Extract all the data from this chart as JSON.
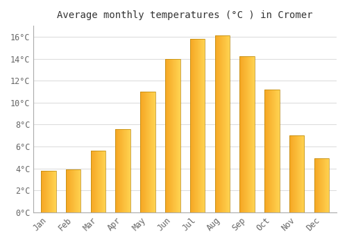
{
  "title": "Average monthly temperatures (°C ) in Cromer",
  "months": [
    "Jan",
    "Feb",
    "Mar",
    "Apr",
    "May",
    "Jun",
    "Jul",
    "Aug",
    "Sep",
    "Oct",
    "Nov",
    "Dec"
  ],
  "temperatures": [
    3.8,
    3.9,
    5.6,
    7.6,
    11.0,
    14.0,
    15.8,
    16.1,
    14.2,
    11.2,
    7.0,
    4.9
  ],
  "bar_color_left": "#F5A623",
  "bar_color_right": "#FFD966",
  "ylim": [
    0,
    17
  ],
  "yticks": [
    0,
    2,
    4,
    6,
    8,
    10,
    12,
    14,
    16
  ],
  "ytick_labels": [
    "0°C",
    "2°C",
    "4°C",
    "6°C",
    "8°C",
    "10°C",
    "12°C",
    "14°C",
    "16°C"
  ],
  "background_color": "#ffffff",
  "grid_color": "#dddddd",
  "bar_edge_color": "#b8860b",
  "title_fontsize": 10,
  "tick_fontsize": 8.5,
  "font_color": "#666666"
}
